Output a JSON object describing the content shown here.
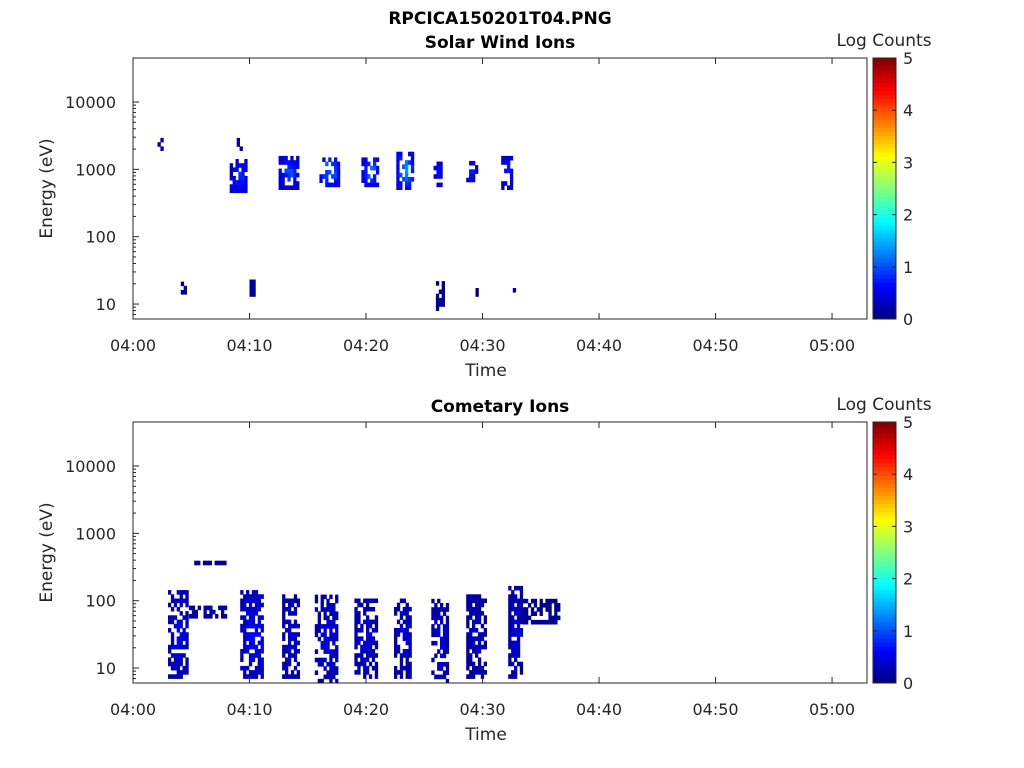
{
  "figure_title": "RPCICA150201T04.PNG",
  "chart_data": [
    {
      "type": "heatmap",
      "title": "Solar Wind Ions",
      "xlabel": "Time",
      "ylabel": "Energy (eV)",
      "y_scale": "log",
      "ylim": [
        6,
        45000
      ],
      "xlim": [
        "04:00",
        "05:03"
      ],
      "x_ticks": [
        "04:00",
        "04:10",
        "04:20",
        "04:30",
        "04:40",
        "04:50",
        "05:00"
      ],
      "y_ticks": [
        "10",
        "100",
        "1000",
        "10000"
      ],
      "colorbar": {
        "label": "Log Counts",
        "range": [
          0,
          5
        ],
        "ticks": [
          "0",
          "1",
          "2",
          "3",
          "4",
          "5"
        ],
        "colormap": "jet"
      },
      "grid": false,
      "clusters": [
        {
          "t0": 2.1,
          "t1": 2.5,
          "e_lo": 1900,
          "e_hi": 2800,
          "level": 0.3
        },
        {
          "t0": 8.3,
          "t1": 9.8,
          "e_lo": 450,
          "e_hi": 1300,
          "level": 1.0
        },
        {
          "t0": 8.9,
          "t1": 9.6,
          "e_lo": 1900,
          "e_hi": 2800,
          "level": 0.3
        },
        {
          "t0": 12.5,
          "t1": 14.2,
          "e_lo": 500,
          "e_hi": 1400,
          "level": 1.1
        },
        {
          "t0": 16.0,
          "t1": 17.6,
          "e_lo": 550,
          "e_hi": 1500,
          "level": 1.4
        },
        {
          "t0": 19.6,
          "t1": 21.0,
          "e_lo": 550,
          "e_hi": 1500,
          "level": 1.3
        },
        {
          "t0": 22.6,
          "t1": 24.0,
          "e_lo": 500,
          "e_hi": 1600,
          "level": 1.5
        },
        {
          "t0": 25.8,
          "t1": 26.5,
          "e_lo": 550,
          "e_hi": 1300,
          "level": 0.8
        },
        {
          "t0": 28.6,
          "t1": 29.5,
          "e_lo": 650,
          "e_hi": 1300,
          "level": 0.9
        },
        {
          "t0": 31.6,
          "t1": 32.6,
          "e_lo": 500,
          "e_hi": 1400,
          "level": 1.0
        },
        {
          "t0": 4.1,
          "t1": 4.6,
          "e_lo": 14,
          "e_hi": 22,
          "level": 0.3
        },
        {
          "t0": 10.0,
          "t1": 10.4,
          "e_lo": 13,
          "e_hi": 21,
          "level": 0.3
        },
        {
          "t0": 26.0,
          "t1": 26.6,
          "e_lo": 8,
          "e_hi": 21,
          "level": 0.2
        },
        {
          "t0": 29.4,
          "t1": 29.6,
          "e_lo": 13,
          "e_hi": 20,
          "level": 0.2
        },
        {
          "t0": 32.6,
          "t1": 32.8,
          "e_lo": 13,
          "e_hi": 20,
          "level": 0.2
        }
      ]
    },
    {
      "type": "heatmap",
      "title": "Cometary Ions",
      "xlabel": "Time",
      "ylabel": "Energy (eV)",
      "y_scale": "log",
      "ylim": [
        6,
        45000
      ],
      "xlim": [
        "04:00",
        "05:03"
      ],
      "x_ticks": [
        "04:00",
        "04:10",
        "04:20",
        "04:30",
        "04:40",
        "04:50",
        "05:00"
      ],
      "y_ticks": [
        "10",
        "100",
        "1000",
        "10000"
      ],
      "colorbar": {
        "label": "Log Counts",
        "range": [
          0,
          5
        ],
        "ticks": [
          "0",
          "1",
          "2",
          "3",
          "4",
          "5"
        ],
        "colormap": "jet"
      },
      "grid": false,
      "clusters": [
        {
          "t0": 3.0,
          "t1": 4.7,
          "e_lo": 7,
          "e_hi": 130,
          "level": 0.6
        },
        {
          "t0": 4.8,
          "t1": 8.0,
          "e_lo": 55,
          "e_hi": 80,
          "level": 0.3
        },
        {
          "t0": 5.0,
          "t1": 8.0,
          "e_lo": 340,
          "e_hi": 380,
          "level": 0.2
        },
        {
          "t0": 9.2,
          "t1": 11.2,
          "e_lo": 7,
          "e_hi": 130,
          "level": 0.7
        },
        {
          "t0": 12.8,
          "t1": 14.2,
          "e_lo": 7,
          "e_hi": 110,
          "level": 0.5
        },
        {
          "t0": 15.6,
          "t1": 17.6,
          "e_lo": 6,
          "e_hi": 110,
          "level": 0.5
        },
        {
          "t0": 19.0,
          "t1": 20.8,
          "e_lo": 7,
          "e_hi": 100,
          "level": 0.5
        },
        {
          "t0": 22.4,
          "t1": 23.8,
          "e_lo": 7,
          "e_hi": 100,
          "level": 0.5
        },
        {
          "t0": 25.6,
          "t1": 27.0,
          "e_lo": 6,
          "e_hi": 100,
          "level": 0.5
        },
        {
          "t0": 28.6,
          "t1": 30.2,
          "e_lo": 7,
          "e_hi": 110,
          "level": 0.4
        },
        {
          "t0": 32.2,
          "t1": 33.4,
          "e_lo": 7,
          "e_hi": 150,
          "level": 0.5
        },
        {
          "t0": 33.4,
          "t1": 36.5,
          "e_lo": 45,
          "e_hi": 95,
          "level": 0.2
        }
      ]
    }
  ]
}
